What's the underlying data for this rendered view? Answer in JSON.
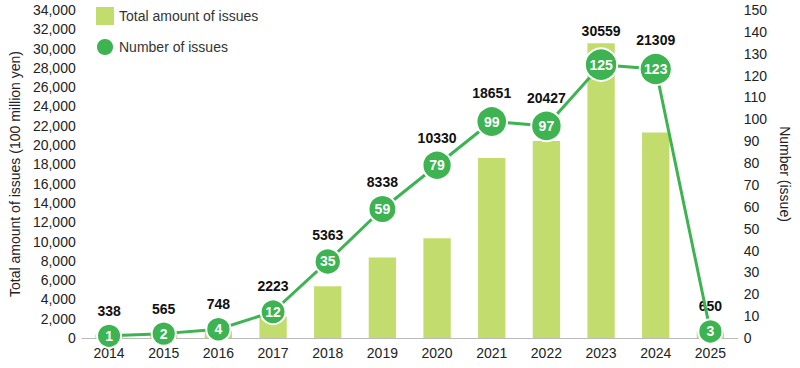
{
  "chart_data": {
    "type": "bar",
    "categories": [
      "2014",
      "2015",
      "2016",
      "2017",
      "2018",
      "2019",
      "2020",
      "2021",
      "2022",
      "2023",
      "2024",
      "2025"
    ],
    "series": [
      {
        "name": "Total amount of issues",
        "type": "bar",
        "color": "#c3dc6e",
        "values": [
          338,
          565,
          748,
          2223,
          5363,
          8338,
          10330,
          18651,
          20427,
          30559,
          21309,
          650
        ]
      },
      {
        "name": "Number of issues",
        "type": "line",
        "axis": "y2",
        "color": "#3db351",
        "marker": "circle",
        "values": [
          1,
          2,
          4,
          12,
          35,
          59,
          79,
          99,
          97,
          125,
          123,
          3
        ]
      }
    ],
    "ylabel": "Total amount of issues (100 million yen)",
    "y2label": "Number (issue)",
    "ylim": [
      0,
      34000
    ],
    "yticks": [
      0,
      2000,
      4000,
      6000,
      8000,
      10000,
      12000,
      14000,
      16000,
      18000,
      20000,
      22000,
      24000,
      26000,
      28000,
      30000,
      32000,
      34000
    ],
    "y2lim": [
      0,
      150
    ],
    "y2ticks": [
      0,
      10,
      20,
      30,
      40,
      50,
      60,
      70,
      80,
      90,
      100,
      110,
      120,
      130,
      140,
      150
    ],
    "legend": "upper left",
    "data_labels": true,
    "grid": false
  }
}
